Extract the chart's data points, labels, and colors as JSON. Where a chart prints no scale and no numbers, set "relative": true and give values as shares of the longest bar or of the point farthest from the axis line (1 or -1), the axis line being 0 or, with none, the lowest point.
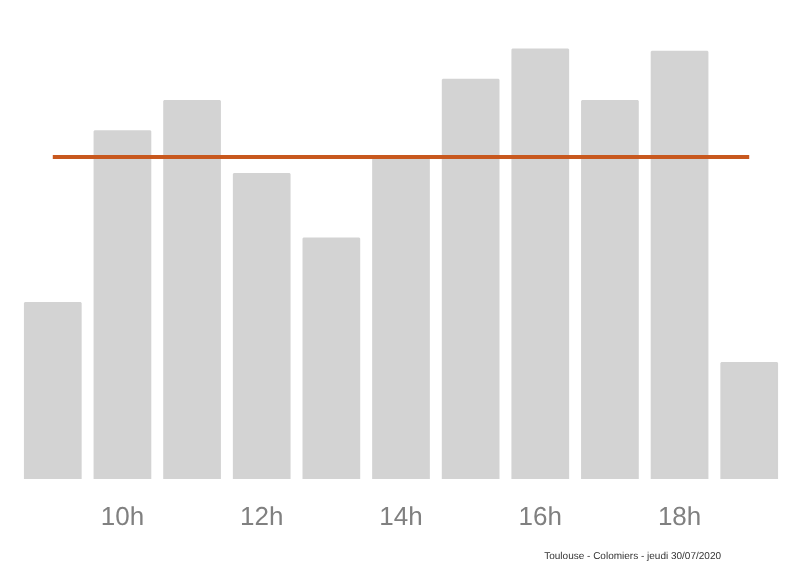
{
  "chart_data": {
    "type": "bar",
    "relative": true,
    "categories": [
      null,
      "10h",
      null,
      "12h",
      null,
      "14h",
      null,
      "16h",
      null,
      "18h",
      null
    ],
    "values": [
      0.41,
      0.81,
      0.88,
      0.71,
      0.56,
      0.75,
      0.93,
      1,
      0.88,
      0.995,
      0.27
    ],
    "color": "#d3d3d3",
    "ref_lines": [
      {
        "axis": "y",
        "value": 0.75,
        "color": "#c8581e"
      }
    ],
    "annotations": [
      "Toulouse - Colomiers - jeudi 30/07/2020"
    ],
    "grid": false
  }
}
